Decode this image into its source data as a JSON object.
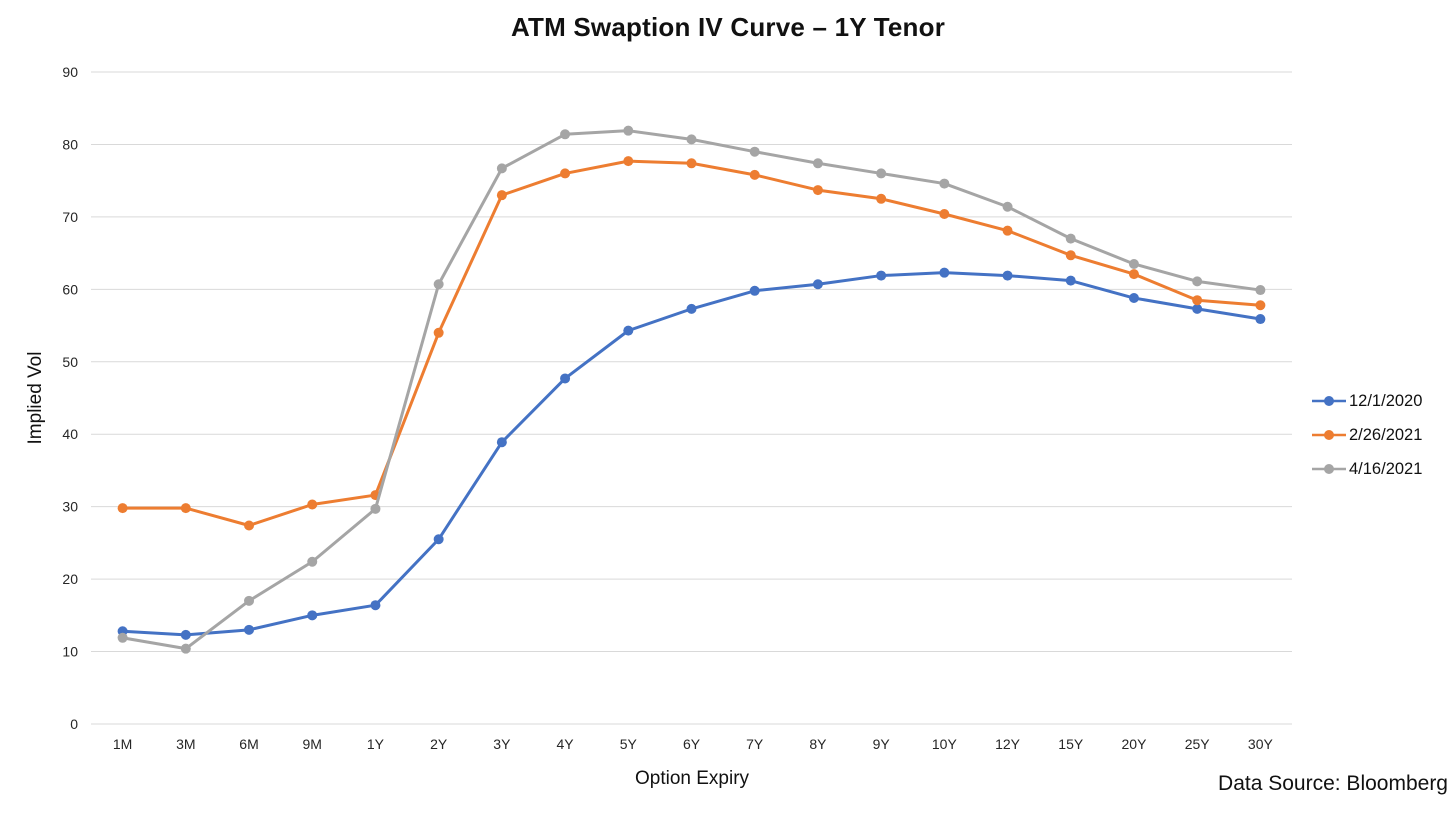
{
  "footer": {
    "data_source": "Data Source: Bloomberg"
  },
  "chart_data": {
    "type": "line",
    "title": "ATM Swaption IV Curve – 1Y Tenor",
    "xlabel": "Option Expiry",
    "ylabel": "Implied Vol",
    "ylim": [
      0,
      90
    ],
    "ytick_step": 10,
    "grid": true,
    "grid_color": "#D9D9D9",
    "legend_position": "right",
    "categories": [
      "1M",
      "3M",
      "6M",
      "9M",
      "1Y",
      "2Y",
      "3Y",
      "4Y",
      "5Y",
      "6Y",
      "7Y",
      "8Y",
      "9Y",
      "10Y",
      "12Y",
      "15Y",
      "20Y",
      "25Y",
      "30Y"
    ],
    "series": [
      {
        "name": "12/1/2020",
        "color": "#4472C4",
        "values": [
          12.8,
          12.3,
          13.0,
          15.0,
          16.4,
          25.5,
          38.9,
          47.7,
          54.3,
          57.3,
          59.8,
          60.7,
          61.9,
          62.3,
          61.9,
          61.2,
          58.8,
          57.3,
          55.9
        ]
      },
      {
        "name": "2/26/2021",
        "color": "#ED7D31",
        "values": [
          29.8,
          29.8,
          27.4,
          30.3,
          31.6,
          54.0,
          73.0,
          76.0,
          77.7,
          77.4,
          75.8,
          73.7,
          72.5,
          70.4,
          68.1,
          64.7,
          62.1,
          58.5,
          57.8
        ]
      },
      {
        "name": "4/16/2021",
        "color": "#A5A5A5",
        "values": [
          11.9,
          10.4,
          17.0,
          22.4,
          29.7,
          60.7,
          76.7,
          81.4,
          81.9,
          80.7,
          79.0,
          77.4,
          76.0,
          74.6,
          71.4,
          67.0,
          63.5,
          61.1,
          59.9
        ]
      }
    ]
  }
}
